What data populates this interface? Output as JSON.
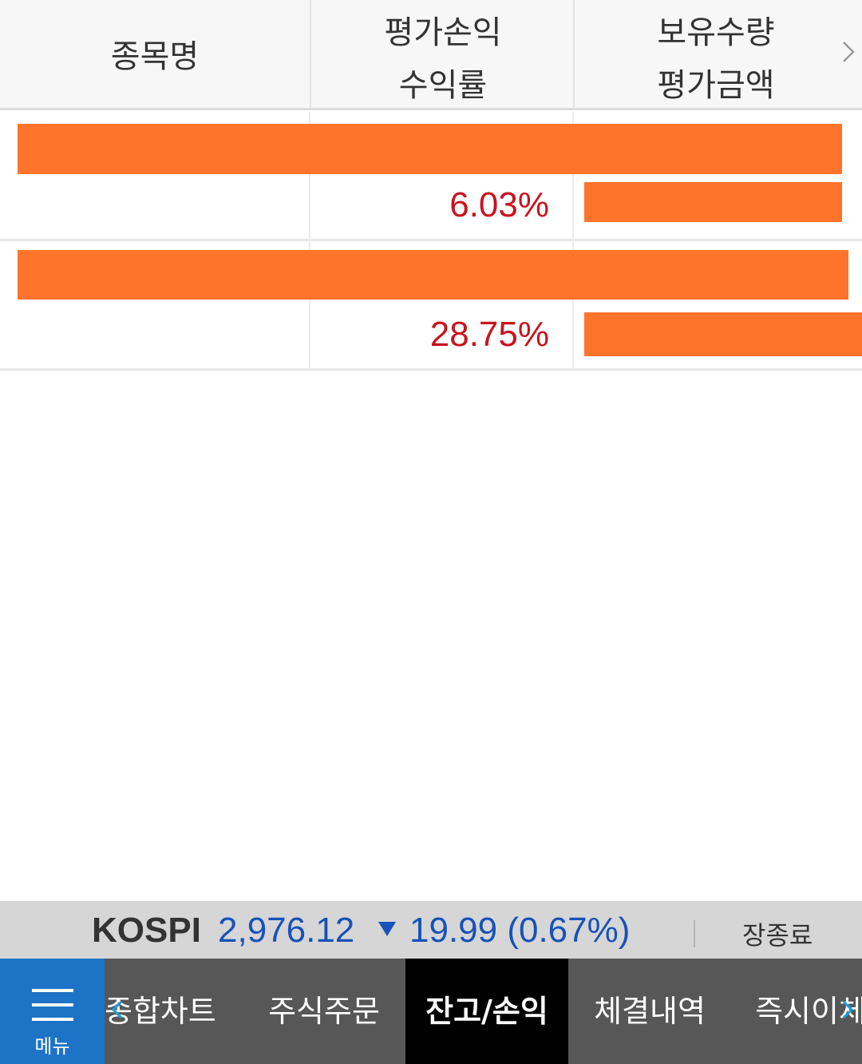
{
  "table": {
    "headers": {
      "name": "종목명",
      "pnl": "평가손익",
      "return_rate": "수익률",
      "quantity": "보유수량",
      "valuation": "평가금액"
    },
    "rows": [
      {
        "return_rate": "6.03%"
      },
      {
        "return_rate": "28.75%"
      }
    ]
  },
  "ticker": {
    "index_name": "KOSPI",
    "index_value": "2,976.12",
    "direction_icon": "triangle-down-icon",
    "change": "19.99 (0.67%)",
    "market_status": "장종료"
  },
  "bottom_nav": {
    "menu_label": "메뉴",
    "tabs": [
      {
        "label": "종합차트"
      },
      {
        "label": "주식주문"
      },
      {
        "label": "잔고/손익"
      },
      {
        "label": "체결내역"
      },
      {
        "label": "즉시이체"
      }
    ],
    "active_tab": "잔고/손익"
  },
  "colors": {
    "profit_text": "#c8141e",
    "index_text": "#1752b8",
    "redaction": "#ff742b",
    "menu_button": "#1d73c5",
    "nav_background": "#575757",
    "active_tab": "#000000"
  }
}
